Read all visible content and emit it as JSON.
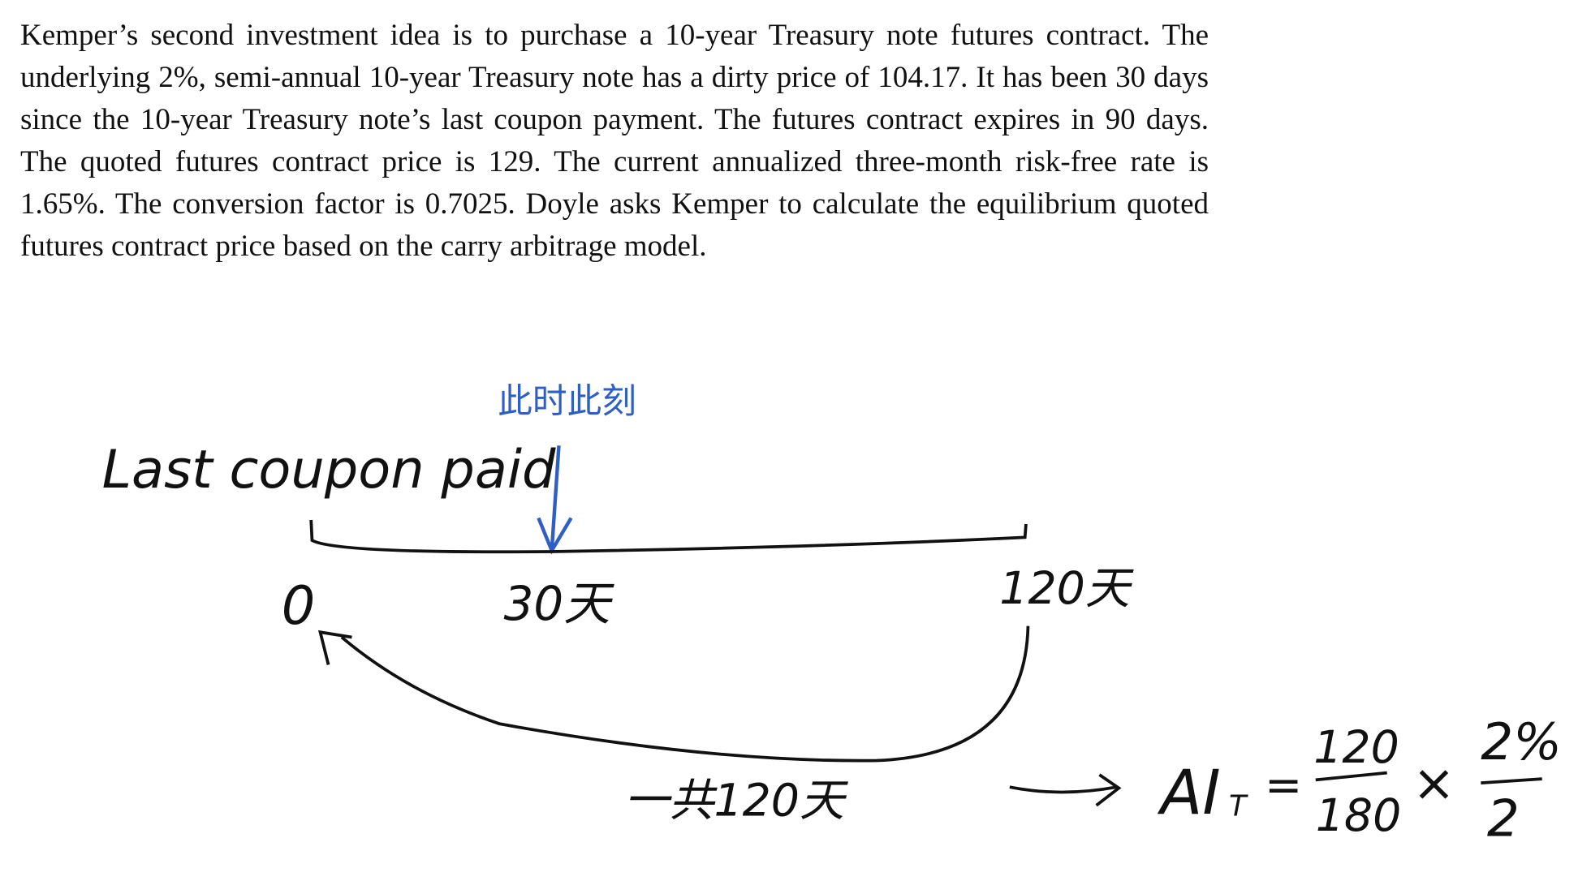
{
  "problem_text": "Kemper’s second investment idea is to purchase a 10-year Treasury note futures contract. The underlying 2%, semi-annual 10-year Treasury note has a dirty price of 104.17. It has been 30 days since the 10-year Treasury note’s last coupon payment. The futures contract expires in 90 days. The quoted futures contract price is 129. The current annualized three-month risk-free rate is 1.65%. The conversion factor is 0.7025. Doyle asks Kemper to calculate the equilibrium quoted futures contract price based on the carry arbitrage model.",
  "annotations": {
    "last_coupon_label": "Last coupon paid",
    "now_label": "此时此刻",
    "tick_0": "0",
    "tick_30": "30天",
    "tick_120": "120天",
    "total_label": "一共120天",
    "formula": {
      "lhs": "AI",
      "lhs_sub": "T",
      "equals": "=",
      "frac1_num": "120",
      "frac1_den": "180",
      "times": "×",
      "frac2_num": "2%",
      "frac2_den": "2"
    }
  },
  "colors": {
    "ink": "#111111",
    "blue_ink": "#2f5fc4"
  }
}
